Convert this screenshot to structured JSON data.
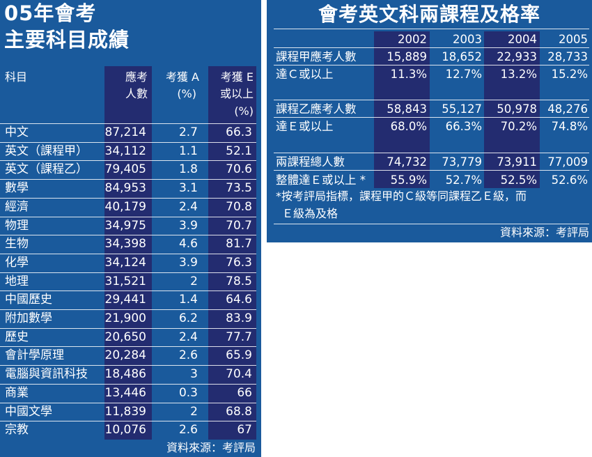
{
  "left": {
    "title_line1": "05年會考",
    "title_line2": "主要科目成績",
    "headers": {
      "subject": "科目",
      "candidates_1": "應考",
      "candidates_2": "人數",
      "gradeA_1": "考獲 A",
      "gradeA_2": "(%)",
      "gradeE_1": "考獲 E",
      "gradeE_2": "或以上",
      "gradeE_3": "(%)"
    },
    "rows": [
      {
        "subject": "中文",
        "candidates": "87,214",
        "a": "2.7",
        "e": "66.3"
      },
      {
        "subject": "英文（課程甲）",
        "candidates": "34,112",
        "a": "1.1",
        "e": "52.1"
      },
      {
        "subject": "英文（課程乙）",
        "candidates": "79,405",
        "a": "1.8",
        "e": "70.6"
      },
      {
        "subject": "數學",
        "candidates": "84,953",
        "a": "3.1",
        "e": "73.5"
      },
      {
        "subject": "經濟",
        "candidates": "40,179",
        "a": "2.4",
        "e": "70.8"
      },
      {
        "subject": "物理",
        "candidates": "34,975",
        "a": "3.9",
        "e": "70.7"
      },
      {
        "subject": "生物",
        "candidates": "34,398",
        "a": "4.6",
        "e": "81.7"
      },
      {
        "subject": "化學",
        "candidates": "34,124",
        "a": "3.9",
        "e": "76.3"
      },
      {
        "subject": "地理",
        "candidates": "31,521",
        "a": "2",
        "e": "78.5"
      },
      {
        "subject": "中國歷史",
        "candidates": "29,441",
        "a": "1.4",
        "e": "64.6"
      },
      {
        "subject": "附加數學",
        "candidates": "21,900",
        "a": "6.2",
        "e": "83.9"
      },
      {
        "subject": "歷史",
        "candidates": "20,650",
        "a": "2.4",
        "e": "77.7"
      },
      {
        "subject": "會計學原理",
        "candidates": "20,284",
        "a": "2.6",
        "e": "65.9"
      },
      {
        "subject": "電腦與資訊科技",
        "candidates": "18,486",
        "a": "3",
        "e": "70.4"
      },
      {
        "subject": "商業",
        "candidates": "13,446",
        "a": "0.3",
        "e": "66"
      },
      {
        "subject": "中國文學",
        "candidates": "11,839",
        "a": "2",
        "e": "68.8"
      },
      {
        "subject": "宗教",
        "candidates": "10,076",
        "a": "2.6",
        "e": "67"
      }
    ],
    "source": "資料來源：考評局"
  },
  "right": {
    "title": "會考英文科兩課程及格率",
    "years": [
      "2002",
      "2003",
      "2004",
      "2005"
    ],
    "rows": [
      {
        "label": "課程甲應考人數",
        "values": [
          "15,889",
          "18,652",
          "22,933",
          "28,733"
        ]
      },
      {
        "label": "達Ｃ或以上",
        "values": [
          "11.3%",
          "12.7%",
          "13.2%",
          "15.2%"
        ]
      },
      {
        "label": "課程乙應考人數",
        "values": [
          "58,843",
          "55,127",
          "50,978",
          "48,276"
        ]
      },
      {
        "label": "達Ｅ或以上",
        "values": [
          "68.0%",
          "66.3%",
          "70.2%",
          "74.8%"
        ]
      },
      {
        "label": "兩課程總人數",
        "values": [
          "74,732",
          "73,779",
          "73,911",
          "77,009"
        ]
      },
      {
        "label": "整體達Ｅ或以上 *",
        "values": [
          "55.9%",
          "52.7%",
          "52.5%",
          "52.6%"
        ]
      }
    ],
    "note_line1": "*按考評局指標，課程甲的Ｃ級等同課程乙Ｅ級，而",
    "note_line2": "Ｅ級為及格",
    "source": "資料來源：考評局"
  }
}
